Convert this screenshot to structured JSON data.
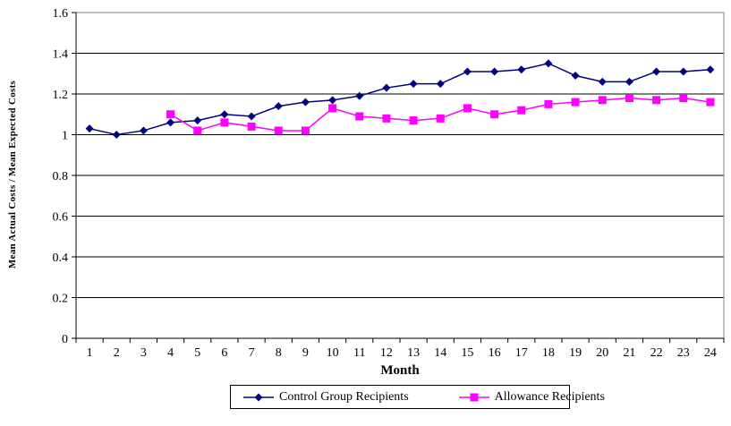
{
  "chart_data": {
    "type": "line",
    "title": "",
    "xlabel": "Month",
    "ylabel": "Mean Actual Costs / Mean Expected Costs",
    "ylim": [
      0,
      1.6
    ],
    "y_tick_labels": [
      "0",
      "0.2",
      "0.4",
      "0.6",
      "0.8",
      "1",
      "1.2",
      "1.4",
      "1.6"
    ],
    "y_tick_values": [
      0,
      0.2,
      0.4,
      0.6,
      0.8,
      1.0,
      1.2,
      1.4,
      1.6
    ],
    "x": [
      1,
      2,
      3,
      4,
      5,
      6,
      7,
      8,
      9,
      10,
      11,
      12,
      13,
      14,
      15,
      16,
      17,
      18,
      19,
      20,
      21,
      22,
      23,
      24
    ],
    "grid": "horizontal",
    "legend_position": "bottom",
    "plot_border_color": "#808080",
    "gridline_color": "#000000",
    "series": [
      {
        "name": "Control Group Recipients",
        "color": "#000080",
        "marker": "diamond",
        "values": [
          1.03,
          1.0,
          1.02,
          1.06,
          1.07,
          1.1,
          1.09,
          1.14,
          1.16,
          1.17,
          1.19,
          1.23,
          1.25,
          1.25,
          1.31,
          1.31,
          1.32,
          1.35,
          1.29,
          1.26,
          1.26,
          1.31,
          1.31,
          1.32
        ]
      },
      {
        "name": "Allowance Recipients",
        "color": "#FF00FF",
        "marker": "square",
        "values": [
          null,
          null,
          null,
          1.1,
          1.02,
          1.06,
          1.04,
          1.02,
          1.02,
          1.13,
          1.09,
          1.08,
          1.07,
          1.08,
          1.13,
          1.1,
          1.12,
          1.15,
          1.16,
          1.17,
          1.18,
          1.17,
          1.18,
          1.16
        ]
      }
    ]
  }
}
